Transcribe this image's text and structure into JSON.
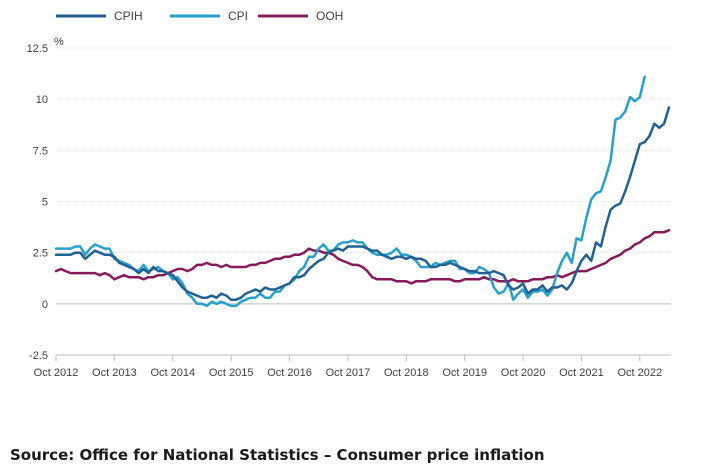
{
  "chart_data": {
    "type": "line",
    "title": "",
    "xlabel": "",
    "ylabel": "%",
    "ylim": [
      -2.5,
      12.5
    ],
    "yticks": [
      "12.5",
      "10",
      "7.5",
      "5",
      "2.5",
      "0",
      "-2.5"
    ],
    "x_tick_labels": [
      "Oct 2012",
      "Oct 2013",
      "Oct 2014",
      "Oct 2015",
      "Oct 2016",
      "Oct 2017",
      "Oct 2018",
      "Oct 2019",
      "Oct 2020",
      "Oct 2021",
      "Oct 2022"
    ],
    "x_start": "Oct 2012",
    "x_end": "Oct 2022",
    "x_frequency": "monthly",
    "gridlines": true,
    "legend_position": "top-left",
    "series": [
      {
        "name": "CPIH",
        "color": "#206095",
        "values": [
          2.4,
          2.4,
          2.4,
          2.4,
          2.5,
          2.5,
          2.2,
          2.4,
          2.6,
          2.5,
          2.4,
          2.4,
          2.3,
          2.0,
          1.9,
          1.8,
          1.7,
          1.5,
          1.7,
          1.5,
          1.8,
          1.6,
          1.6,
          1.5,
          1.4,
          1.1,
          0.8,
          0.6,
          0.5,
          0.4,
          0.3,
          0.3,
          0.4,
          0.3,
          0.5,
          0.4,
          0.2,
          0.2,
          0.3,
          0.5,
          0.6,
          0.7,
          0.6,
          0.8,
          0.7,
          0.7,
          0.8,
          0.9,
          1.0,
          1.3,
          1.3,
          1.4,
          1.7,
          1.9,
          2.1,
          2.2,
          2.5,
          2.6,
          2.7,
          2.6,
          2.8,
          2.8,
          2.8,
          2.8,
          2.7,
          2.6,
          2.6,
          2.4,
          2.3,
          2.2,
          2.3,
          2.3,
          2.2,
          2.3,
          2.2,
          2.2,
          2.1,
          1.8,
          1.8,
          1.9,
          1.9,
          2.0,
          1.9,
          1.8,
          1.7,
          1.6,
          1.6,
          1.5,
          1.5,
          1.5,
          1.6,
          1.5,
          1.4,
          0.9,
          0.7,
          0.8,
          1.0,
          0.5,
          0.7,
          0.7,
          0.9,
          0.6,
          0.8,
          0.8,
          0.9,
          0.7,
          1.0,
          1.6,
          2.1,
          2.4,
          2.1,
          3.0,
          2.8,
          3.8,
          4.6,
          4.8,
          4.9,
          5.5,
          6.2,
          7.0,
          7.8,
          7.9,
          8.2,
          8.8,
          8.6,
          8.8,
          9.6
        ]
      },
      {
        "name": "CPI",
        "color": "#27a0cc",
        "values": [
          2.7,
          2.7,
          2.7,
          2.7,
          2.8,
          2.8,
          2.4,
          2.7,
          2.9,
          2.8,
          2.7,
          2.7,
          2.2,
          2.1,
          2.0,
          1.9,
          1.7,
          1.6,
          1.9,
          1.6,
          1.7,
          1.8,
          1.6,
          1.5,
          1.2,
          1.3,
          1.0,
          0.5,
          0.3,
          0.0,
          0.0,
          -0.1,
          0.1,
          0.0,
          0.1,
          0.0,
          -0.1,
          -0.1,
          0.1,
          0.2,
          0.3,
          0.3,
          0.5,
          0.3,
          0.3,
          0.6,
          0.6,
          0.9,
          1.0,
          1.2,
          1.6,
          1.8,
          2.3,
          2.3,
          2.7,
          2.9,
          2.6,
          2.6,
          2.9,
          3.0,
          3.0,
          3.1,
          3.0,
          3.0,
          2.7,
          2.5,
          2.4,
          2.4,
          2.4,
          2.5,
          2.7,
          2.4,
          2.4,
          2.3,
          2.1,
          1.8,
          1.8,
          1.8,
          2.0,
          1.9,
          2.0,
          2.1,
          2.1,
          1.7,
          1.7,
          1.5,
          1.5,
          1.8,
          1.7,
          1.5,
          0.8,
          0.5,
          0.6,
          1.0,
          0.2,
          0.5,
          0.7,
          0.3,
          0.6,
          0.6,
          0.7,
          0.4,
          0.7,
          1.5,
          2.1,
          2.5,
          2.0,
          3.2,
          3.1,
          4.2,
          5.1,
          5.4,
          5.5,
          6.2,
          7.0,
          9.0,
          9.1,
          9.4,
          10.1,
          9.9,
          10.1,
          11.1
        ]
      },
      {
        "name": "OOH",
        "color": "#871a5b",
        "values": [
          1.6,
          1.7,
          1.6,
          1.5,
          1.5,
          1.5,
          1.5,
          1.5,
          1.5,
          1.4,
          1.5,
          1.4,
          1.2,
          1.3,
          1.4,
          1.3,
          1.3,
          1.3,
          1.2,
          1.3,
          1.3,
          1.4,
          1.4,
          1.5,
          1.6,
          1.7,
          1.7,
          1.6,
          1.7,
          1.9,
          1.9,
          2.0,
          1.9,
          1.9,
          1.8,
          1.9,
          1.8,
          1.8,
          1.8,
          1.8,
          1.9,
          1.9,
          2.0,
          2.0,
          2.1,
          2.2,
          2.2,
          2.3,
          2.3,
          2.4,
          2.4,
          2.5,
          2.7,
          2.6,
          2.6,
          2.5,
          2.5,
          2.4,
          2.2,
          2.1,
          2.0,
          1.9,
          1.9,
          1.8,
          1.6,
          1.3,
          1.2,
          1.2,
          1.2,
          1.2,
          1.1,
          1.1,
          1.1,
          1.0,
          1.1,
          1.1,
          1.1,
          1.2,
          1.2,
          1.2,
          1.2,
          1.2,
          1.1,
          1.1,
          1.2,
          1.2,
          1.2,
          1.2,
          1.3,
          1.2,
          1.2,
          1.1,
          1.1,
          1.1,
          1.2,
          1.1,
          1.1,
          1.1,
          1.2,
          1.2,
          1.2,
          1.3,
          1.3,
          1.4,
          1.3,
          1.4,
          1.5,
          1.6,
          1.6,
          1.6,
          1.7,
          1.8,
          1.9,
          2.0,
          2.2,
          2.3,
          2.4,
          2.6,
          2.7,
          2.9,
          3.0,
          3.2,
          3.3,
          3.5,
          3.5,
          3.5,
          3.6
        ]
      }
    ]
  },
  "footer": {
    "source": "Source: Office for National Statistics – Consumer price inflation"
  }
}
